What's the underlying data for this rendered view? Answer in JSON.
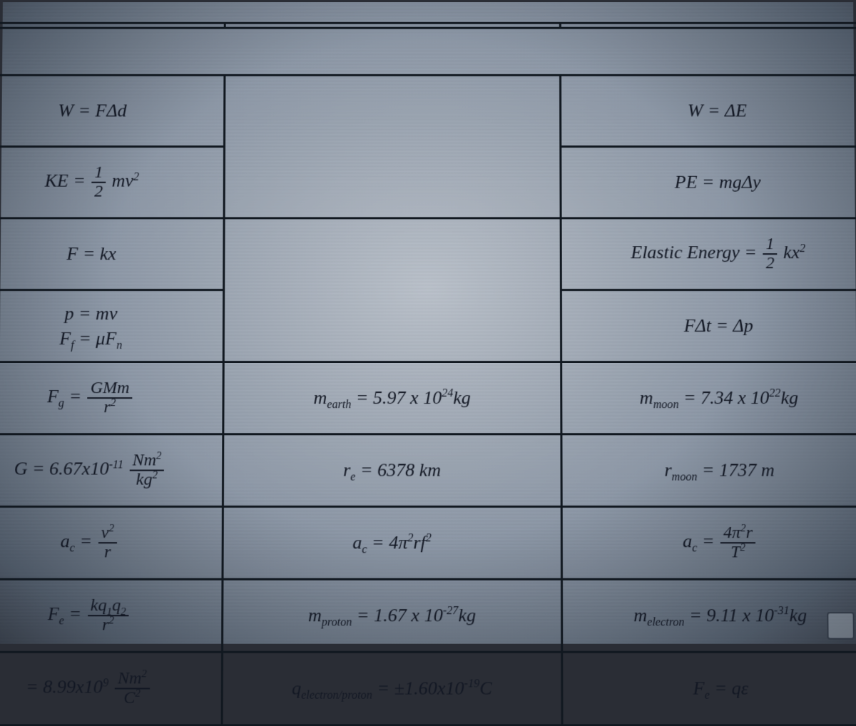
{
  "colors": {
    "screen_center": "#bcc3cc",
    "screen_edge": "#2f3540",
    "rule": "#111820",
    "text": "#121723"
  },
  "font": {
    "family": "Georgia / serif",
    "style": "italic",
    "size_pt": 20
  },
  "rows": [
    {
      "c1": "W = FΔd",
      "c2": "",
      "c3": "W = ΔE"
    },
    {
      "c1_html": "KE = <span class=frac><span class=num>1</span><span class=den>2</span></span> mv<sup>2</sup>",
      "c2": "",
      "c3": "PE = mgΔy"
    },
    {
      "c1": "F = kx",
      "c2": "",
      "c3_html": "Elastic Energy = <span class=frac><span class=num>1</span><span class=den>2</span></span> kx<sup>2</sup>"
    },
    {
      "c1_html": "p = mv<br>F<sub>f</sub> = μF<sub>n</sub>",
      "c2": "",
      "c3": "FΔt = Δp"
    },
    {
      "c1_html": "F<sub>g</sub> = <span class=frac><span class=num>GMm</span><span class=den>r<sup>2</sup></span></span>",
      "c2_html": "m<sub>earth</sub> = 5.97 x 10<sup>24</sup>kg",
      "c3_html": "m<sub>moon</sub> = 7.34 x 10<sup>22</sup>kg"
    },
    {
      "c1_html": "G = 6.67x10<sup>-11</sup> <span class=frac><span class=num>Nm<sup>2</sup></span><span class=den>kg<sup>2</sup></span></span>",
      "c2_html": "r<sub>e</sub> = 6378 km",
      "c3_html": "r<sub>moon</sub> = 1737 m"
    },
    {
      "c1_html": "a<sub>c</sub> = <span class=frac><span class=num>v<sup>2</sup></span><span class=den>r</span></span>",
      "c2_html": "a<sub>c</sub> = 4π<sup>2</sup>rf<sup>2</sup>",
      "c3_html": "a<sub>c</sub> = <span class=frac><span class=num>4π<sup>2</sup>r</span><span class=den>T<sup>2</sup></span></span>"
    },
    {
      "c1_html": "F<sub>e</sub> = <span class=frac><span class=num>kq<sub>1</sub>q<sub>2</sub></span><span class=den>r<sup>2</sup></span></span>",
      "c2_html": "m<sub>proton</sub> = 1.67 x 10<sup>-27</sup>kg",
      "c3_html": "m<sub>electron</sub> = 9.11 x 10<sup>-31</sup>kg"
    },
    {
      "c1_html": "= 8.99x10<sup>9</sup> <span class=frac><span class=num>Nm<sup>2</sup></span><span class=den>C<sup>2</sup></span></span>",
      "c2_html": "q<sub>electron/proton</sub> = ±1.60x10<sup>-19</sup>C",
      "c3_html": "F<sub>e</sub> = qε"
    }
  ]
}
